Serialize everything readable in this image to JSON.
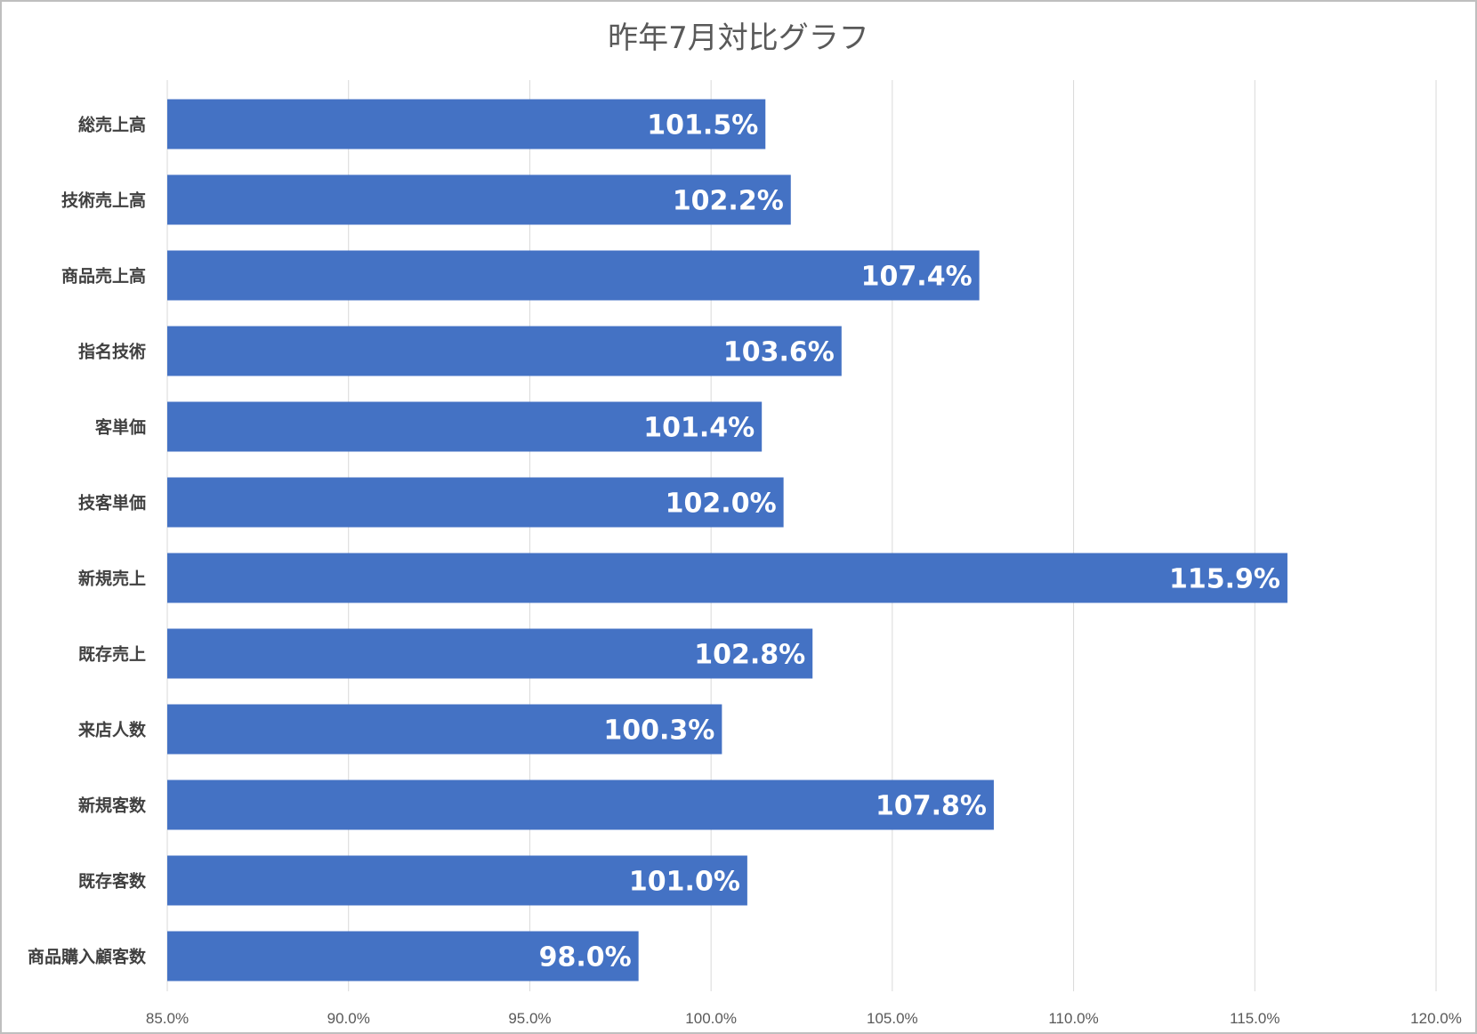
{
  "chart_data": {
    "type": "bar",
    "orientation": "horizontal",
    "title": "昨年7月対比グラフ",
    "categories": [
      "総売上高",
      "技術売上高",
      "商品売上高",
      "指名技術",
      "客単価",
      "技客単価",
      "新規売上",
      "既存売上",
      "来店人数",
      "新規客数",
      "既存客数",
      "商品購入顧客数"
    ],
    "values": [
      101.5,
      102.2,
      107.4,
      103.6,
      101.4,
      102.0,
      115.9,
      102.8,
      100.3,
      107.8,
      101.0,
      98.0
    ],
    "data_labels": [
      "101.5%",
      "102.2%",
      "107.4%",
      "103.6%",
      "101.4%",
      "102.0%",
      "115.9%",
      "102.8%",
      "100.3%",
      "107.8%",
      "101.0%",
      "98.0%"
    ],
    "xlim": [
      85,
      120
    ],
    "xticks": [
      85,
      90,
      95,
      100,
      105,
      110,
      115,
      120
    ],
    "xtick_labels": [
      "85.0%",
      "90.0%",
      "95.0%",
      "100.0%",
      "105.0%",
      "110.0%",
      "115.0%",
      "120.0%"
    ],
    "xlabel": "",
    "ylabel": "",
    "grid": "vertical",
    "legend": "none",
    "bar_color": "#4472C4"
  }
}
